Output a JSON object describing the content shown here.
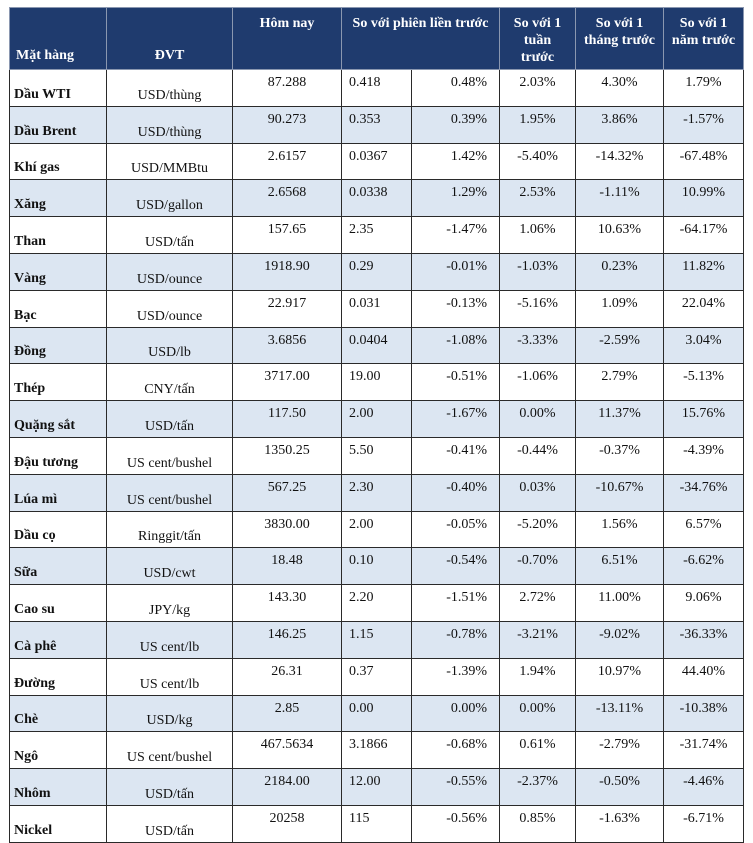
{
  "header": {
    "item": "Mặt hàng",
    "unit": "ĐVT",
    "today": "Hôm nay",
    "vs_prev": "So với phiên liền trước",
    "vs_week": "So với 1 tuần trước",
    "vs_month": "So với 1 tháng trước",
    "vs_year": "So với 1 năm trước"
  },
  "rows": [
    {
      "name": "Dầu WTI",
      "unit": "USD/thùng",
      "today": "87.288",
      "chg": "0.418",
      "pct": "0.48%",
      "week": "2.03%",
      "month": "4.30%",
      "year": "1.79%"
    },
    {
      "name": "Dầu Brent",
      "unit": "USD/thùng",
      "today": "90.273",
      "chg": "0.353",
      "pct": "0.39%",
      "week": "1.95%",
      "month": "3.86%",
      "year": "-1.57%"
    },
    {
      "name": "Khí gas",
      "unit": "USD/MMBtu",
      "today": "2.6157",
      "chg": "0.0367",
      "pct": "1.42%",
      "week": "-5.40%",
      "month": "-14.32%",
      "year": "-67.48%"
    },
    {
      "name": "Xăng",
      "unit": "USD/gallon",
      "today": "2.6568",
      "chg": "0.0338",
      "pct": "1.29%",
      "week": "2.53%",
      "month": "-1.11%",
      "year": "10.99%"
    },
    {
      "name": "Than",
      "unit": "USD/tấn",
      "today": "157.65",
      "chg": "2.35",
      "pct": "-1.47%",
      "week": "1.06%",
      "month": "10.63%",
      "year": "-64.17%"
    },
    {
      "name": "Vàng",
      "unit": "USD/ounce",
      "today": "1918.90",
      "chg": "0.29",
      "pct": "-0.01%",
      "week": "-1.03%",
      "month": "0.23%",
      "year": "11.82%"
    },
    {
      "name": "Bạc",
      "unit": "USD/ounce",
      "today": "22.917",
      "chg": "0.031",
      "pct": "-0.13%",
      "week": "-5.16%",
      "month": "1.09%",
      "year": "22.04%"
    },
    {
      "name": "Đồng",
      "unit": "USD/lb",
      "today": "3.6856",
      "chg": "0.0404",
      "pct": "-1.08%",
      "week": "-3.33%",
      "month": "-2.59%",
      "year": "3.04%"
    },
    {
      "name": "Thép",
      "unit": "CNY/tấn",
      "today": "3717.00",
      "chg": "19.00",
      "pct": "-0.51%",
      "week": "-1.06%",
      "month": "2.79%",
      "year": "-5.13%"
    },
    {
      "name": "Quặng sắt",
      "unit": "USD/tấn",
      "today": "117.50",
      "chg": "2.00",
      "pct": "-1.67%",
      "week": "0.00%",
      "month": "11.37%",
      "year": "15.76%"
    },
    {
      "name": "Đậu tương",
      "unit": "US cent/bushel",
      "today": "1350.25",
      "chg": "5.50",
      "pct": "-0.41%",
      "week": "-0.44%",
      "month": "-0.37%",
      "year": "-4.39%"
    },
    {
      "name": "Lúa mì",
      "unit": "US cent/bushel",
      "today": "567.25",
      "chg": "2.30",
      "pct": "-0.40%",
      "week": "0.03%",
      "month": "-10.67%",
      "year": "-34.76%"
    },
    {
      "name": "Dầu cọ",
      "unit": "Ringgit/tấn",
      "today": "3830.00",
      "chg": "2.00",
      "pct": "-0.05%",
      "week": "-5.20%",
      "month": "1.56%",
      "year": "6.57%"
    },
    {
      "name": "Sữa",
      "unit": "USD/cwt",
      "today": "18.48",
      "chg": "0.10",
      "pct": "-0.54%",
      "week": "-0.70%",
      "month": "6.51%",
      "year": "-6.62%"
    },
    {
      "name": "Cao su",
      "unit": "JPY/kg",
      "today": "143.30",
      "chg": "2.20",
      "pct": "-1.51%",
      "week": "2.72%",
      "month": "11.00%",
      "year": "9.06%"
    },
    {
      "name": "Cà phê",
      "unit": "US cent/lb",
      "today": "146.25",
      "chg": "1.15",
      "pct": "-0.78%",
      "week": "-3.21%",
      "month": "-9.02%",
      "year": "-36.33%"
    },
    {
      "name": "Đường",
      "unit": "US cent/lb",
      "today": "26.31",
      "chg": "0.37",
      "pct": "-1.39%",
      "week": "1.94%",
      "month": "10.97%",
      "year": "44.40%"
    },
    {
      "name": "Chè",
      "unit": "USD/kg",
      "today": "2.85",
      "chg": "0.00",
      "pct": "0.00%",
      "week": "0.00%",
      "month": "-13.11%",
      "year": "-10.38%"
    },
    {
      "name": "Ngô",
      "unit": "US cent/bushel",
      "today": "467.5634",
      "chg": "3.1866",
      "pct": "-0.68%",
      "week": "0.61%",
      "month": "-2.79%",
      "year": "-31.74%"
    },
    {
      "name": "Nhôm",
      "unit": "USD/tấn",
      "today": "2184.00",
      "chg": "12.00",
      "pct": "-0.55%",
      "week": "-2.37%",
      "month": "-0.50%",
      "year": "-4.46%"
    },
    {
      "name": "Nickel",
      "unit": "USD/tấn",
      "today": "20258",
      "chg": "115",
      "pct": "-0.56%",
      "week": "0.85%",
      "month": "-1.63%",
      "year": "-6.71%"
    }
  ]
}
